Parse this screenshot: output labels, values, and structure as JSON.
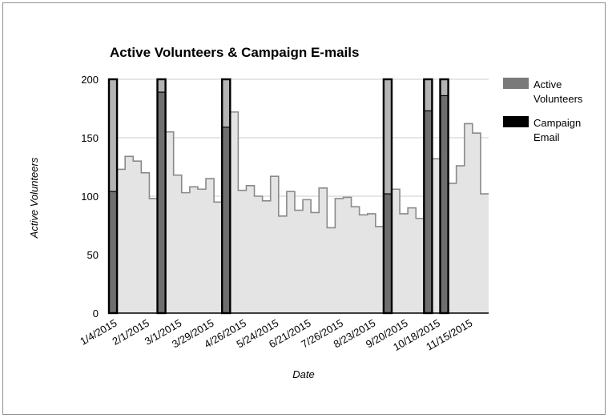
{
  "chart_data": {
    "type": "area",
    "title": "Active Volunteers & Campaign E-mails",
    "xlabel": "Date",
    "ylabel": "Active Volunteers",
    "ylim": [
      0,
      200
    ],
    "yticks": [
      0,
      50,
      100,
      150,
      200
    ],
    "grid": true,
    "legend_position": "right",
    "x_tick_labels": [
      "1/4/2015",
      "2/1/2015",
      "3/1/2015",
      "3/29/2015",
      "4/26/2015",
      "5/24/2015",
      "6/21/2015",
      "7/26/2015",
      "8/23/2015",
      "9/20/2015",
      "10/18/2015",
      "11/15/2015"
    ],
    "series": [
      {
        "name": "Active Volunteers",
        "color": "#7a7a7a",
        "values": [
          104,
          123,
          134,
          130,
          120,
          98,
          189,
          155,
          118,
          103,
          108,
          106,
          115,
          95,
          159,
          172,
          105,
          109,
          100,
          96,
          117,
          83,
          104,
          88,
          97,
          86,
          107,
          73,
          98,
          99,
          91,
          84,
          85,
          74,
          102,
          106,
          85,
          90,
          81,
          173,
          132,
          186,
          111,
          126,
          162,
          154,
          102
        ]
      },
      {
        "name": "Campaign Email",
        "color": "#000000",
        "values": [
          200,
          0,
          0,
          0,
          0,
          0,
          200,
          0,
          0,
          0,
          0,
          0,
          0,
          0,
          200,
          0,
          0,
          0,
          0,
          0,
          0,
          0,
          0,
          0,
          0,
          0,
          0,
          0,
          0,
          0,
          0,
          0,
          0,
          0,
          200,
          0,
          0,
          0,
          0,
          200,
          0,
          200,
          0,
          0,
          0,
          0,
          0
        ]
      }
    ]
  }
}
